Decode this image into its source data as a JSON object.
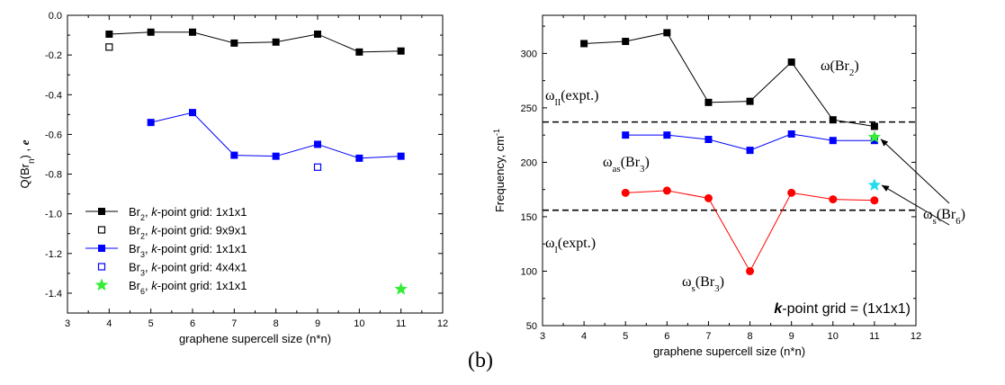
{
  "panel_label": "(b)",
  "chart_data": [
    {
      "type": "line",
      "xlabel": "graphene supercell size (n*n)",
      "ylabel": "Q(Brₙ) , e",
      "ylabel_parts": {
        "base": "Q(Br",
        "sub": "n",
        "rest": ") , ",
        "unit": "e"
      },
      "xlim": [
        3,
        12
      ],
      "ylim": [
        -1.5,
        0.0
      ],
      "xticks": [
        3,
        4,
        5,
        6,
        7,
        8,
        9,
        10,
        11,
        12
      ],
      "yticks": [
        0.0,
        -0.2,
        -0.4,
        -0.6,
        -0.8,
        -1.0,
        -1.2,
        -1.4
      ],
      "ytick_labels": [
        "0.0",
        "-0.2",
        "-0.4",
        "-0.6",
        "-0.8",
        "-1.0",
        "-1.2",
        "-1.4"
      ],
      "legend_position": "bottom-left",
      "series": [
        {
          "name": "Br2, k-point grid: 1x1x1",
          "legend": {
            "pre": "Br",
            "sub": "2",
            "mid": ", ",
            "k": "k",
            "post": "-point grid: 1x1x1"
          },
          "marker": "square-filled",
          "color": "#000000",
          "line": true,
          "x": [
            4,
            5,
            6,
            7,
            8,
            9,
            10,
            11
          ],
          "y": [
            -0.095,
            -0.085,
            -0.085,
            -0.14,
            -0.135,
            -0.095,
            -0.185,
            -0.18
          ]
        },
        {
          "name": "Br2, k-point grid: 9x9x1",
          "legend": {
            "pre": "Br",
            "sub": "2",
            "mid": ", ",
            "k": "k",
            "post": "-point grid: 9x9x1"
          },
          "marker": "square-open",
          "color": "#000000",
          "line": false,
          "x": [
            4
          ],
          "y": [
            -0.16
          ]
        },
        {
          "name": "Br3, k-point grid: 1x1x1",
          "legend": {
            "pre": "Br",
            "sub": "3",
            "mid": ", ",
            "k": "k",
            "post": "-point grid: 1x1x1"
          },
          "marker": "square-filled",
          "color": "#0000ff",
          "line": true,
          "x": [
            5,
            6,
            7,
            8,
            9,
            10,
            11
          ],
          "y": [
            -0.54,
            -0.49,
            -0.705,
            -0.71,
            -0.65,
            -0.72,
            -0.71
          ]
        },
        {
          "name": "Br3, k-point grid: 4x4x1",
          "legend": {
            "pre": "Br",
            "sub": "3",
            "mid": ", ",
            "k": "k",
            "post": "-point grid: 4x4x1"
          },
          "marker": "square-open",
          "color": "#0000ff",
          "line": false,
          "x": [
            9
          ],
          "y": [
            -0.765
          ]
        },
        {
          "name": "Br6, k-point grid: 1x1x1",
          "legend": {
            "pre": "Br",
            "sub": "6",
            "mid": ", ",
            "k": "k",
            "post": "-point grid: 1x1x1"
          },
          "marker": "star",
          "color": "#33ee33",
          "line": false,
          "x": [
            11
          ],
          "y": [
            -1.38
          ]
        }
      ]
    },
    {
      "type": "line",
      "xlabel": "graphene supercell size (n*n)",
      "ylabel": "Frequency, cm⁻¹",
      "ylabel_parts": {
        "base": "Frequency, cm",
        "sup": "-1"
      },
      "xlim": [
        3,
        12
      ],
      "ylim": [
        50,
        335
      ],
      "xticks": [
        3,
        4,
        5,
        6,
        7,
        8,
        9,
        10,
        11,
        12
      ],
      "yticks": [
        50,
        100,
        150,
        200,
        250,
        300
      ],
      "ytick_labels": [
        "50",
        "100",
        "150",
        "200",
        "250",
        "300"
      ],
      "series": [
        {
          "name": "ω(Br2)",
          "marker": "square-filled",
          "color": "#000000",
          "line": true,
          "x": [
            4,
            5,
            6,
            7,
            8,
            9,
            10,
            11
          ],
          "y": [
            309,
            311,
            319,
            255,
            256,
            292,
            239,
            233
          ]
        },
        {
          "name": "ωas(Br3)",
          "marker": "square-filled",
          "color": "#0000ff",
          "line": true,
          "x": [
            5,
            6,
            7,
            8,
            9,
            10,
            11
          ],
          "y": [
            225,
            225,
            221,
            211,
            226,
            220,
            220
          ]
        },
        {
          "name": "ωs(Br3)",
          "marker": "circle-filled",
          "color": "#ff0000",
          "line": true,
          "x": [
            5,
            6,
            7,
            8,
            9,
            10,
            11
          ],
          "y": [
            172,
            174,
            167,
            100,
            172,
            166,
            165
          ]
        },
        {
          "name": "ωs(Br6) upper",
          "marker": "star",
          "color": "#33ee33",
          "line": false,
          "x": [
            11
          ],
          "y": [
            223
          ]
        },
        {
          "name": "ωs(Br6) lower",
          "marker": "star",
          "color": "#22ddee",
          "line": false,
          "x": [
            11
          ],
          "y": [
            179
          ]
        }
      ],
      "reference_lines": [
        {
          "label": "ωII(expt.)",
          "y": 237,
          "style": "dashed"
        },
        {
          "label": "ωI(expt.)",
          "y": 156,
          "style": "dashed"
        }
      ],
      "annotations": {
        "omega_br2": {
          "pre": "ω(Br",
          "sub": "2",
          "post": ")"
        },
        "omega_as_br3": {
          "pre": "ω",
          "sub1": "as",
          "mid": "(Br",
          "sub2": "3",
          "post": ")"
        },
        "omega_s_br3": {
          "pre": "ω",
          "sub1": "s",
          "mid": "(Br",
          "sub2": "3",
          "post": ")"
        },
        "omega_s_br6": {
          "pre": "ω",
          "sub1": "s",
          "mid": "(Br",
          "sub2": "6",
          "post": ")"
        },
        "omega_II": {
          "pre": "ω",
          "sub": "II",
          "post": "(expt.)"
        },
        "omega_I": {
          "pre": "ω",
          "sub": "I",
          "post": "(expt.)"
        },
        "kgrid": {
          "k": "k",
          "post": "-point grid = (1x1x1)"
        }
      }
    }
  ]
}
